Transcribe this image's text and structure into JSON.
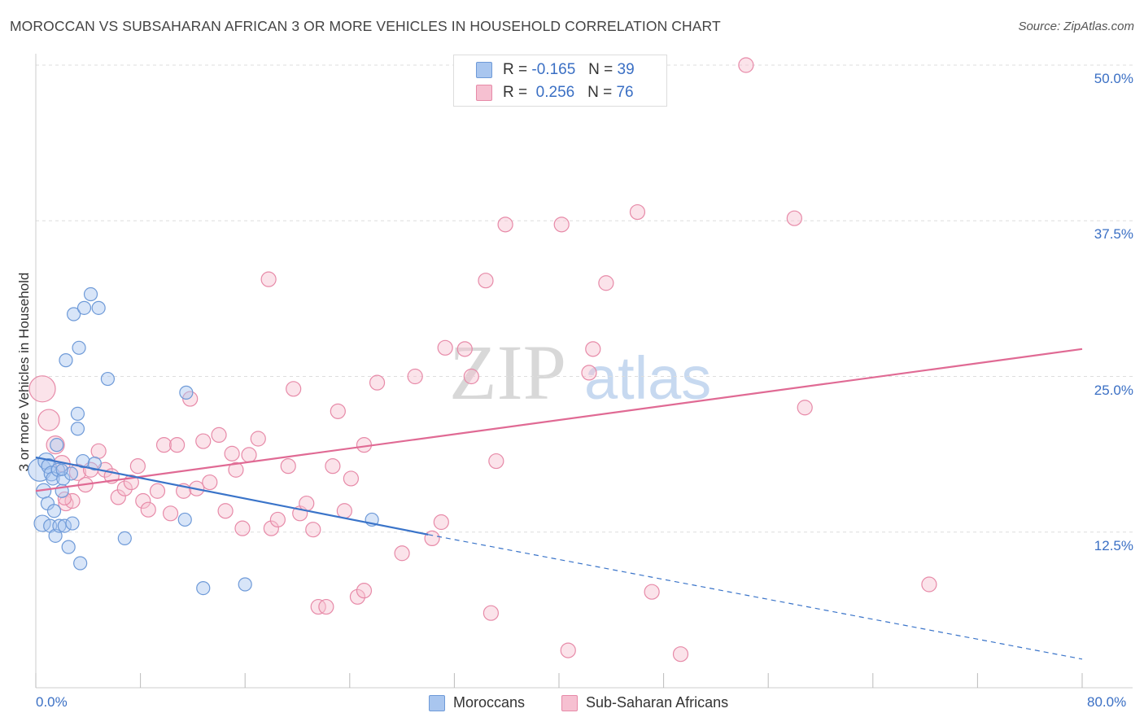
{
  "header": {
    "title": "MOROCCAN VS SUBSAHARAN AFRICAN 3 OR MORE VEHICLES IN HOUSEHOLD CORRELATION CHART",
    "source": "Source: ZipAtlas.com"
  },
  "watermark": {
    "zip": "ZIP",
    "atlas": "atlas"
  },
  "legend": {
    "rows": [
      {
        "r_label": "R =",
        "r_value": "-0.165",
        "n_label": "N =",
        "n_value": "39"
      },
      {
        "r_label": "R =",
        "r_value": "0.256",
        "n_label": "N =",
        "n_value": "76"
      }
    ]
  },
  "colors": {
    "moroccan_fill": "#a9c6ef",
    "moroccan_stroke": "#6e9ad8",
    "moroccan_line": "#3a74c9",
    "subsaharan_fill": "#f6c0d1",
    "subsaharan_stroke": "#e78aa8",
    "subsaharan_line": "#e06a94",
    "axis_label": "#3a6fc4"
  },
  "chart_data": {
    "type": "scatter",
    "ylabel": "3 or more Vehicles in Household",
    "x_tick_labels": [
      "0.0%",
      "80.0%"
    ],
    "y_tick_labels": [
      "12.5%",
      "25.0%",
      "37.5%",
      "50.0%"
    ],
    "xlim": [
      0,
      80
    ],
    "ylim": [
      0,
      50
    ],
    "y_ticks": [
      12.5,
      25.0,
      37.5,
      50.0
    ],
    "grid": "horizontal-dashed",
    "legend_position": "top-center",
    "series": [
      {
        "name": "Moroccans",
        "r": -0.165,
        "n": 39,
        "trend": {
          "x0": 0,
          "y0": 18.5,
          "x1": 30,
          "y1": 12.3,
          "dashed_to": [
            80,
            2.3
          ]
        },
        "points": [
          [
            0.3,
            17.5,
            14
          ],
          [
            0.5,
            13.2,
            10
          ],
          [
            0.6,
            15.8,
            9
          ],
          [
            0.8,
            18.2,
            10
          ],
          [
            0.9,
            14.8,
            8
          ],
          [
            1.0,
            17.8,
            9
          ],
          [
            1.1,
            13.0,
            8
          ],
          [
            1.2,
            17.2,
            9
          ],
          [
            1.3,
            16.8,
            8
          ],
          [
            1.4,
            14.2,
            8
          ],
          [
            1.5,
            12.2,
            8
          ],
          [
            1.6,
            19.5,
            8
          ],
          [
            1.7,
            17.5,
            8
          ],
          [
            1.8,
            13.0,
            8
          ],
          [
            2.0,
            15.8,
            8
          ],
          [
            2.1,
            16.8,
            8
          ],
          [
            2.2,
            13.0,
            8
          ],
          [
            2.3,
            26.3,
            8
          ],
          [
            2.5,
            11.3,
            8
          ],
          [
            2.7,
            17.2,
            8
          ],
          [
            2.8,
            13.2,
            8
          ],
          [
            2.9,
            30.0,
            8
          ],
          [
            3.2,
            22.0,
            8
          ],
          [
            3.2,
            20.8,
            8
          ],
          [
            3.3,
            27.3,
            8
          ],
          [
            3.4,
            10.0,
            8
          ],
          [
            3.6,
            18.2,
            8
          ],
          [
            3.7,
            30.5,
            8
          ],
          [
            4.2,
            31.6,
            8
          ],
          [
            4.5,
            18.0,
            8
          ],
          [
            4.8,
            30.5,
            8
          ],
          [
            5.5,
            24.8,
            8
          ],
          [
            6.8,
            12.0,
            8
          ],
          [
            11.5,
            23.7,
            8
          ],
          [
            11.4,
            13.5,
            8
          ],
          [
            12.8,
            8.0,
            8
          ],
          [
            16.0,
            8.3,
            8
          ],
          [
            25.7,
            13.5,
            8
          ],
          [
            2.0,
            17.5,
            7
          ]
        ]
      },
      {
        "name": "Sub-Saharan Africans",
        "r": 0.256,
        "n": 76,
        "trend": {
          "x0": 0,
          "y0": 15.8,
          "x1": 80,
          "y1": 27.2
        },
        "points": [
          [
            0.5,
            24.0,
            16
          ],
          [
            1.0,
            21.5,
            13
          ],
          [
            1.5,
            19.5,
            11
          ],
          [
            2.0,
            18.0,
            10
          ],
          [
            2.3,
            14.8,
            9
          ],
          [
            2.8,
            15.0,
            9
          ],
          [
            3.2,
            17.3,
            10
          ],
          [
            3.8,
            16.3,
            9
          ],
          [
            4.2,
            17.5,
            9
          ],
          [
            4.8,
            19.0,
            9
          ],
          [
            5.3,
            17.5,
            9
          ],
          [
            5.8,
            17.0,
            9
          ],
          [
            6.3,
            15.3,
            9
          ],
          [
            6.8,
            16.0,
            9
          ],
          [
            7.3,
            16.5,
            9
          ],
          [
            7.8,
            17.8,
            9
          ],
          [
            8.2,
            15.0,
            9
          ],
          [
            8.6,
            14.3,
            9
          ],
          [
            9.3,
            15.8,
            9
          ],
          [
            9.8,
            19.5,
            9
          ],
          [
            10.3,
            14.0,
            9
          ],
          [
            10.8,
            19.5,
            9
          ],
          [
            11.3,
            15.8,
            9
          ],
          [
            11.8,
            23.2,
            9
          ],
          [
            12.3,
            16.0,
            9
          ],
          [
            12.8,
            19.8,
            9
          ],
          [
            13.3,
            16.5,
            9
          ],
          [
            14.0,
            20.3,
            9
          ],
          [
            14.5,
            14.2,
            9
          ],
          [
            15.0,
            18.8,
            9
          ],
          [
            15.3,
            17.5,
            9
          ],
          [
            15.8,
            12.8,
            9
          ],
          [
            16.3,
            18.7,
            9
          ],
          [
            17.0,
            20.0,
            9
          ],
          [
            17.8,
            32.8,
            9
          ],
          [
            18.0,
            12.8,
            9
          ],
          [
            18.5,
            13.5,
            9
          ],
          [
            19.3,
            17.8,
            9
          ],
          [
            19.7,
            24.0,
            9
          ],
          [
            20.2,
            14.0,
            9
          ],
          [
            20.7,
            14.8,
            9
          ],
          [
            21.2,
            12.7,
            9
          ],
          [
            21.6,
            6.5,
            9
          ],
          [
            22.2,
            6.5,
            9
          ],
          [
            22.7,
            17.8,
            9
          ],
          [
            23.1,
            22.2,
            9
          ],
          [
            23.6,
            14.2,
            9
          ],
          [
            24.1,
            16.8,
            9
          ],
          [
            24.6,
            7.3,
            9
          ],
          [
            25.1,
            7.8,
            9
          ],
          [
            25.1,
            19.5,
            9
          ],
          [
            26.1,
            24.5,
            9
          ],
          [
            28.0,
            10.8,
            9
          ],
          [
            29.0,
            25.0,
            9
          ],
          [
            30.3,
            12.0,
            9
          ],
          [
            31.0,
            13.3,
            9
          ],
          [
            31.3,
            27.3,
            9
          ],
          [
            32.8,
            27.2,
            9
          ],
          [
            33.3,
            25.0,
            9
          ],
          [
            34.4,
            32.7,
            9
          ],
          [
            34.8,
            6.0,
            9
          ],
          [
            35.2,
            18.2,
            9
          ],
          [
            35.9,
            37.2,
            9
          ],
          [
            40.2,
            37.2,
            9
          ],
          [
            40.7,
            3.0,
            9
          ],
          [
            42.3,
            25.3,
            9
          ],
          [
            42.6,
            27.2,
            9
          ],
          [
            43.6,
            32.5,
            9
          ],
          [
            46.0,
            38.2,
            9
          ],
          [
            47.1,
            7.7,
            9
          ],
          [
            49.3,
            2.7,
            9
          ],
          [
            54.3,
            50.0,
            9
          ],
          [
            58.0,
            37.7,
            9
          ],
          [
            58.8,
            22.5,
            9
          ],
          [
            68.3,
            8.3,
            9
          ],
          [
            2.2,
            15.2,
            8
          ]
        ]
      }
    ]
  }
}
